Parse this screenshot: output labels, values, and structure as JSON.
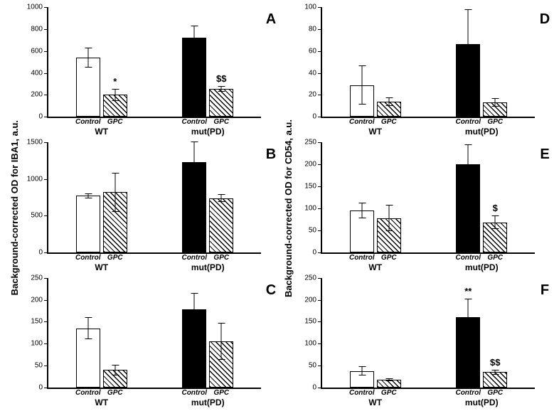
{
  "ylabel_left": "Background-corrected OD for IBA1, a.u.",
  "ylabel_right": "Background-corrected OD for CD54, a.u.",
  "group_names": [
    "WT",
    "mut(PD)"
  ],
  "condition_names": [
    "Control",
    "GPC"
  ],
  "colors": {
    "wt_control": "#ffffff",
    "wt_gpc_hatch": true,
    "mut_control": "#000000",
    "mut_gpc_hatch": true,
    "axis": "#000000",
    "bg": "#ffffff"
  },
  "panels": [
    {
      "id": "A",
      "ymax": 1000,
      "ytick_step": 200,
      "bars": [
        {
          "v": 540,
          "err": 90,
          "fill": "#ffffff",
          "hatch": false,
          "sig": ""
        },
        {
          "v": 200,
          "err": 55,
          "fill": "#ffffff",
          "hatch": true,
          "sig": "*"
        },
        {
          "v": 720,
          "err": 110,
          "fill": "#000000",
          "hatch": false,
          "sig": ""
        },
        {
          "v": 255,
          "err": 25,
          "fill": "#ffffff",
          "hatch": true,
          "sig": "$$"
        }
      ]
    },
    {
      "id": "B",
      "ymax": 1500,
      "ytick_step": 500,
      "bars": [
        {
          "v": 770,
          "err": 30,
          "fill": "#ffffff",
          "hatch": false,
          "sig": ""
        },
        {
          "v": 820,
          "err": 270,
          "fill": "#ffffff",
          "hatch": true,
          "sig": ""
        },
        {
          "v": 1230,
          "err": 280,
          "fill": "#000000",
          "hatch": false,
          "sig": ""
        },
        {
          "v": 740,
          "err": 50,
          "fill": "#ffffff",
          "hatch": true,
          "sig": ""
        }
      ]
    },
    {
      "id": "C",
      "ymax": 250,
      "ytick_step": 50,
      "bars": [
        {
          "v": 135,
          "err": 25,
          "fill": "#ffffff",
          "hatch": false,
          "sig": ""
        },
        {
          "v": 40,
          "err": 12,
          "fill": "#ffffff",
          "hatch": true,
          "sig": ""
        },
        {
          "v": 178,
          "err": 38,
          "fill": "#000000",
          "hatch": false,
          "sig": ""
        },
        {
          "v": 105,
          "err": 42,
          "fill": "#ffffff",
          "hatch": true,
          "sig": ""
        }
      ]
    },
    {
      "id": "D",
      "ymax": 100,
      "ytick_step": 20,
      "bars": [
        {
          "v": 29,
          "err": 18,
          "fill": "#ffffff",
          "hatch": false,
          "sig": ""
        },
        {
          "v": 14,
          "err": 4,
          "fill": "#ffffff",
          "hatch": true,
          "sig": ""
        },
        {
          "v": 66,
          "err": 32,
          "fill": "#000000",
          "hatch": false,
          "sig": ""
        },
        {
          "v": 13,
          "err": 4,
          "fill": "#ffffff",
          "hatch": true,
          "sig": ""
        }
      ]
    },
    {
      "id": "E",
      "ymax": 250,
      "ytick_step": 50,
      "bars": [
        {
          "v": 95,
          "err": 18,
          "fill": "#ffffff",
          "hatch": false,
          "sig": ""
        },
        {
          "v": 78,
          "err": 30,
          "fill": "#ffffff",
          "hatch": true,
          "sig": ""
        },
        {
          "v": 200,
          "err": 45,
          "fill": "#000000",
          "hatch": false,
          "sig": ""
        },
        {
          "v": 68,
          "err": 15,
          "fill": "#ffffff",
          "hatch": true,
          "sig": "$"
        }
      ]
    },
    {
      "id": "F",
      "ymax": 250,
      "ytick_step": 50,
      "bars": [
        {
          "v": 38,
          "err": 10,
          "fill": "#ffffff",
          "hatch": false,
          "sig": ""
        },
        {
          "v": 18,
          "err": 3,
          "fill": "#ffffff",
          "hatch": true,
          "sig": ""
        },
        {
          "v": 160,
          "err": 42,
          "fill": "#000000",
          "hatch": false,
          "sig": "**"
        },
        {
          "v": 35,
          "err": 6,
          "fill": "#ffffff",
          "hatch": true,
          "sig": "$$"
        }
      ]
    }
  ]
}
